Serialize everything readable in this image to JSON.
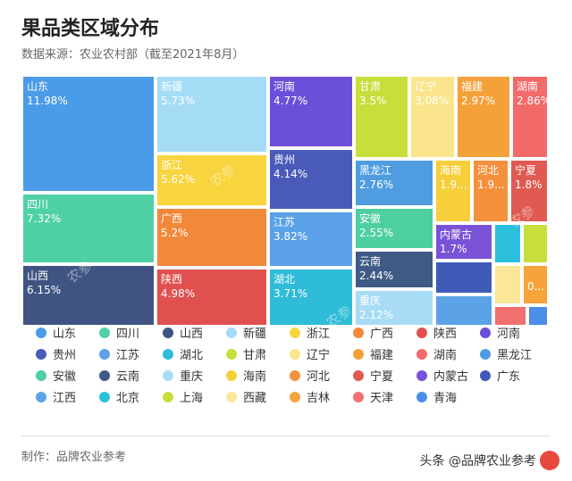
{
  "header": {
    "title": "果品类区域分布",
    "subtitle": "数据来源：农业农村部（截至2021年8月）"
  },
  "footer": {
    "credit": "制作：品牌农业参考",
    "watermark": "头条 @品牌农业参考",
    "stamp": "农参"
  },
  "chart_data": {
    "type": "treemap",
    "title": "果品类区域分布",
    "unit": "%",
    "series": [
      {
        "name": "山东",
        "value": 11.98,
        "label": "11.98%",
        "color": "#4a9be8"
      },
      {
        "name": "四川",
        "value": 7.32,
        "label": "7.32%",
        "color": "#4fd1a4"
      },
      {
        "name": "山西",
        "value": 6.15,
        "label": "6.15%",
        "color": "#3f5482"
      },
      {
        "name": "新疆",
        "value": 5.73,
        "label": "5.73%",
        "color": "#a4dcf6"
      },
      {
        "name": "浙江",
        "value": 5.62,
        "label": "5.62%",
        "color": "#f8d53e"
      },
      {
        "name": "广西",
        "value": 5.2,
        "label": "5.2%",
        "color": "#f2893a"
      },
      {
        "name": "陕西",
        "value": 4.98,
        "label": "4.98%",
        "color": "#e0504e"
      },
      {
        "name": "河南",
        "value": 4.77,
        "label": "4.77%",
        "color": "#6b4fd8"
      },
      {
        "name": "贵州",
        "value": 4.14,
        "label": "4.14%",
        "color": "#4a5ab8"
      },
      {
        "name": "江苏",
        "value": 3.82,
        "label": "3.82%",
        "color": "#5aa1e8"
      },
      {
        "name": "湖北",
        "value": 3.71,
        "label": "3.71%",
        "color": "#2fbcd8"
      },
      {
        "name": "甘肃",
        "value": 3.5,
        "label": "3.5%",
        "color": "#c8de3a"
      },
      {
        "name": "辽宁",
        "value": 3.08,
        "label": "3.08%",
        "color": "#fae58c"
      },
      {
        "name": "福建",
        "value": 2.97,
        "label": "2.97%",
        "color": "#f5a13a"
      },
      {
        "name": "湖南",
        "value": 2.86,
        "label": "2.86%",
        "color": "#f26a6a"
      },
      {
        "name": "黑龙江",
        "value": 2.76,
        "label": "2.76%",
        "color": "#4f9de0"
      },
      {
        "name": "安徽",
        "value": 2.55,
        "label": "2.55%",
        "color": "#4dcf9f"
      },
      {
        "name": "云南",
        "value": 2.44,
        "label": "2.44%",
        "color": "#3e5a85"
      },
      {
        "name": "重庆",
        "value": 2.12,
        "label": "2.12%",
        "color": "#a8dcf4"
      },
      {
        "name": "海南",
        "value": 1.9,
        "label": "1.9...",
        "color": "#f6cf3a"
      },
      {
        "name": "河北",
        "value": 1.9,
        "label": "1.9...",
        "color": "#f5903c"
      },
      {
        "name": "宁夏",
        "value": 1.8,
        "label": "1.8%",
        "color": "#e05a52"
      },
      {
        "name": "内蒙古",
        "value": 1.7,
        "label": "1.7%",
        "color": "#7a52d8"
      },
      {
        "name": "广东",
        "value": null,
        "label": "",
        "color": "#3f5bb8"
      },
      {
        "name": "江西",
        "value": null,
        "label": "",
        "color": "#5ba3e6"
      },
      {
        "name": "北京",
        "value": null,
        "label": "",
        "color": "#2cc0dc"
      },
      {
        "name": "上海",
        "value": null,
        "label": "",
        "color": "#c8de3a"
      },
      {
        "name": "西藏",
        "value": null,
        "label": "",
        "color": "#fbe79a"
      },
      {
        "name": "吉林",
        "value": null,
        "label": "0...",
        "color": "#f6a43a"
      },
      {
        "name": "天津",
        "value": null,
        "label": "",
        "color": "#f27070"
      },
      {
        "name": "青海",
        "value": null,
        "label": "",
        "color": "#4a8ee8"
      }
    ]
  }
}
